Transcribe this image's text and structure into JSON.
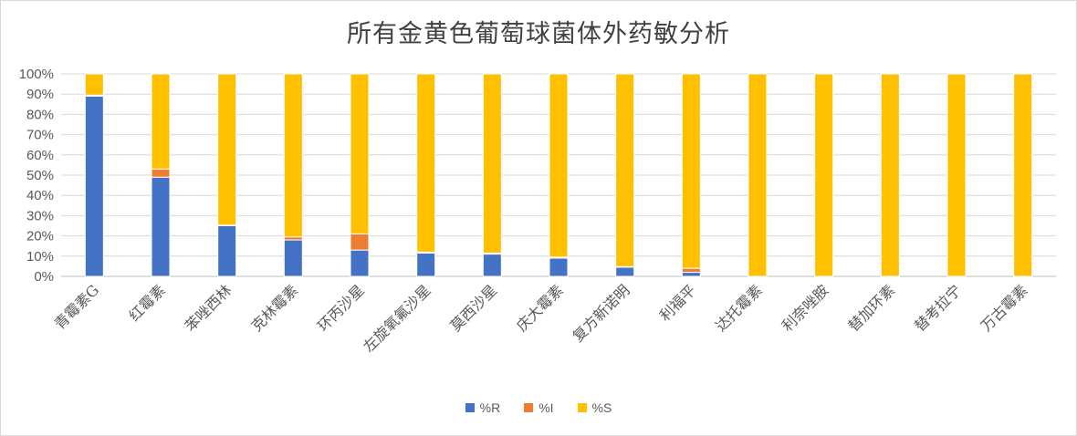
{
  "chart_data": {
    "type": "bar",
    "stacked": true,
    "title": "所有金黄色葡萄球菌体外药敏分析",
    "xlabel": "",
    "ylabel": "",
    "ylim": [
      0,
      100
    ],
    "yticks": [
      "0%",
      "10%",
      "20%",
      "30%",
      "40%",
      "50%",
      "60%",
      "70%",
      "80%",
      "90%",
      "100%"
    ],
    "grid": true,
    "legend_position": "bottom",
    "categories": [
      "青霉素G",
      "红霉素",
      "苯唑西林",
      "克林霉素",
      "环丙沙星",
      "左旋氧氟沙星",
      "莫西沙星",
      "庆大霉素",
      "复方新诺明",
      "利福平",
      "达托霉素",
      "利奈唑胺",
      "替加环素",
      "替考拉宁",
      "万古霉素"
    ],
    "series": [
      {
        "name": "%R",
        "color": "#4472C4",
        "values": [
          89,
          49,
          25,
          18,
          13,
          11.5,
          11,
          9,
          4.5,
          2,
          0,
          0,
          0,
          0,
          0
        ]
      },
      {
        "name": "%I",
        "color": "#ED7D31",
        "values": [
          0.5,
          4,
          0.3,
          1.5,
          8,
          0.5,
          0.5,
          0.5,
          0.3,
          2,
          0,
          0,
          0,
          0,
          0
        ]
      },
      {
        "name": "%S",
        "color": "#FFC000",
        "values": [
          10.5,
          47,
          74.7,
          80.5,
          79,
          88,
          88.5,
          90.5,
          95.2,
          96,
          100,
          100,
          100,
          100,
          100
        ]
      }
    ]
  }
}
